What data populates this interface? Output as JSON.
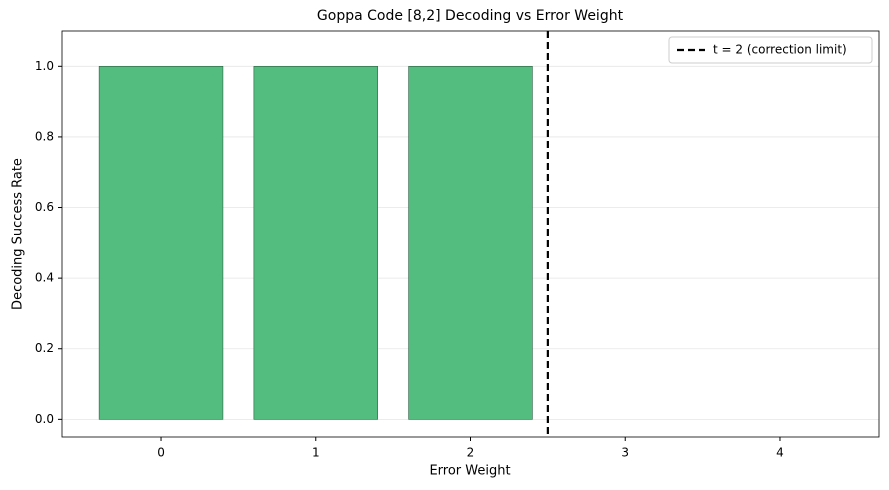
{
  "chart_data": {
    "type": "bar",
    "title": "Goppa Code [8,2] Decoding vs Error Weight",
    "x_label": "Error Weight",
    "y_label": "Decoding Success Rate",
    "x": [
      0,
      1,
      2,
      3,
      4
    ],
    "values": [
      1,
      1,
      1,
      0,
      0
    ],
    "color": "#52bd7e",
    "edge_color": "#2e5e42",
    "xlim": [
      -0.64,
      4.64
    ],
    "ylim": [
      -0.05,
      1.1
    ],
    "xticks": [
      0,
      1,
      2,
      3,
      4
    ],
    "yticks": [
      {
        "value": 0,
        "label": "0.0"
      },
      0.2,
      0.4,
      0.6,
      0.8,
      {
        "value": 1,
        "label": "1.0"
      }
    ],
    "grid": true,
    "vline": {
      "x": 2.5,
      "label": "t = 2 (correction limit)",
      "color": "#000000"
    },
    "legend": "upper right"
  }
}
